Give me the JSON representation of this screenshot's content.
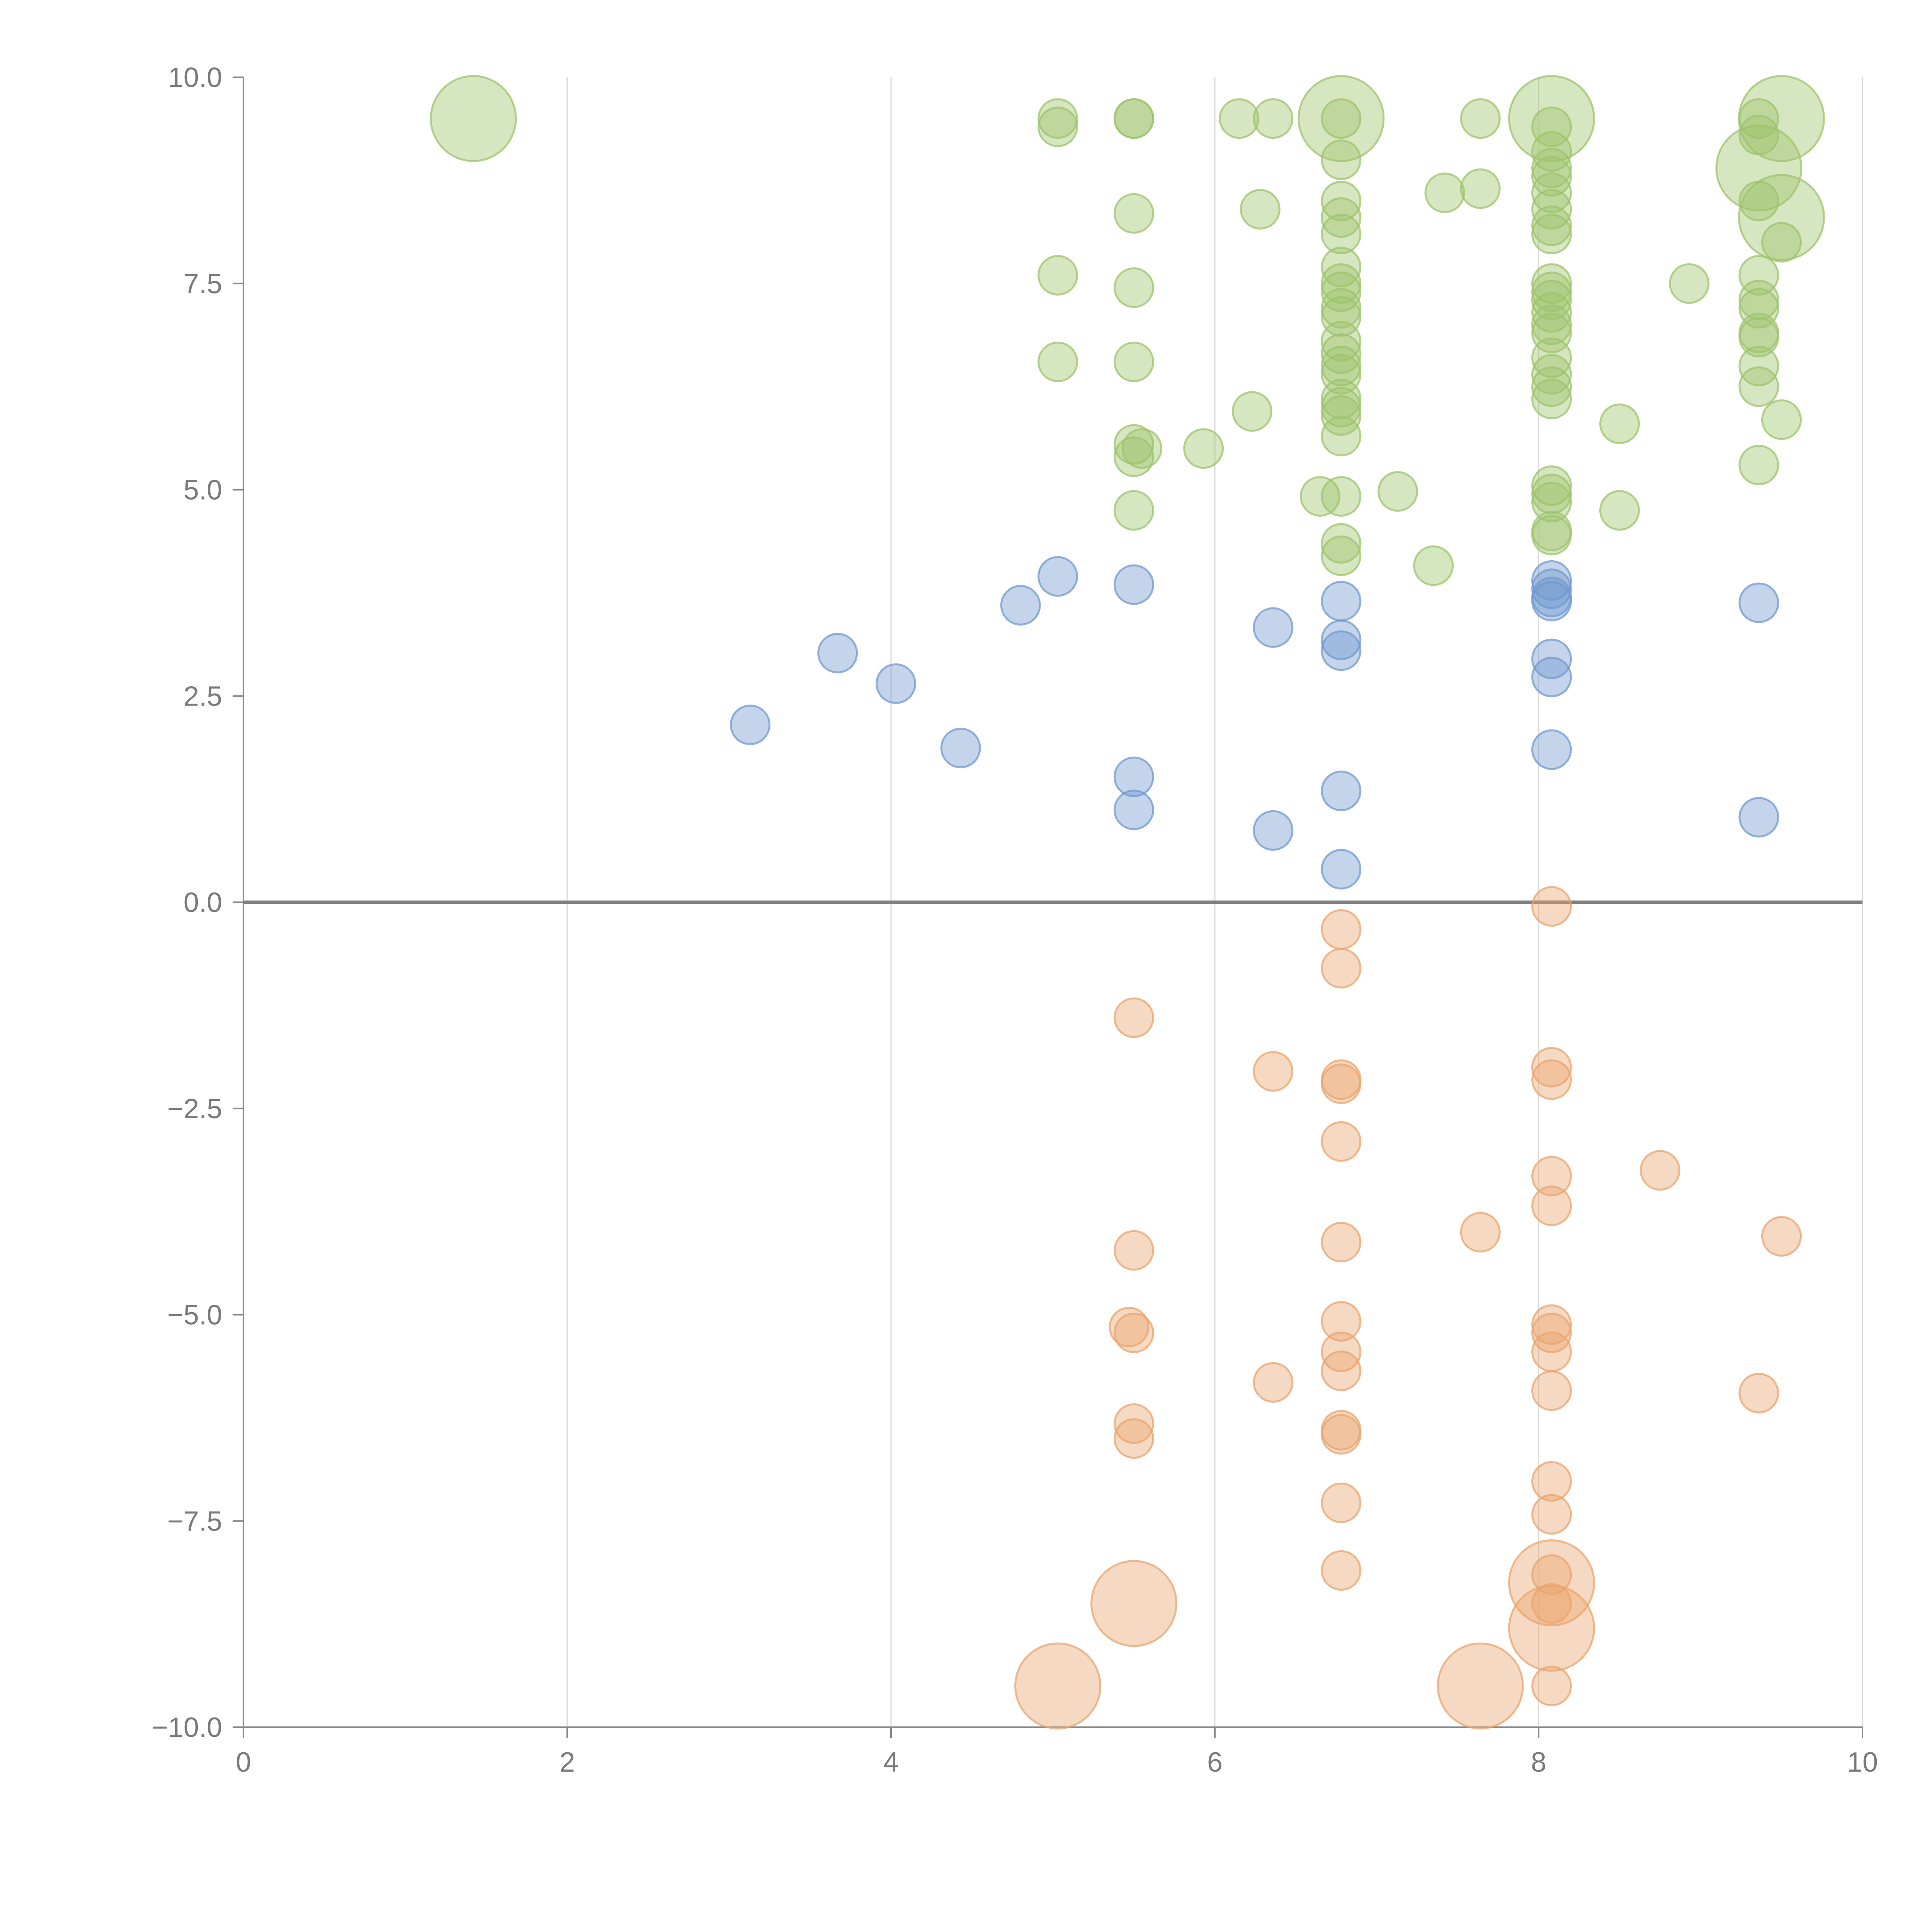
{
  "chart_data": {
    "type": "scatter",
    "title": "",
    "xlabel": "",
    "ylabel": "",
    "xlim": [
      0,
      10
    ],
    "ylim": [
      -10,
      10
    ],
    "x_ticks": [
      "0",
      "2",
      "4",
      "6",
      "8",
      "10"
    ],
    "y_ticks": [
      "−10.0",
      "−7.5",
      "−5.0",
      "−2.5",
      "0.0",
      "2.5",
      "5.0",
      "7.5",
      "10.0"
    ],
    "grid": "vertical",
    "legend": "none",
    "zero_line": true,
    "series": [
      {
        "color": "#9dc36b",
        "points": [
          [
            1.42,
            9.5,
            2.2
          ],
          [
            5.03,
            9.5,
            1
          ],
          [
            5.03,
            9.4,
            1
          ],
          [
            5.5,
            9.5,
            1
          ],
          [
            5.5,
            9.5,
            1
          ],
          [
            6.15,
            9.5,
            1
          ],
          [
            6.36,
            9.5,
            1
          ],
          [
            6.78,
            9.5,
            2.2
          ],
          [
            6.78,
            9.5,
            1
          ],
          [
            7.64,
            9.5,
            1
          ],
          [
            8.08,
            9.5,
            2.2
          ],
          [
            8.08,
            9.4,
            1
          ],
          [
            9.36,
            9.5,
            1
          ],
          [
            9.5,
            9.5,
            2.2
          ],
          [
            9.36,
            9.3,
            1
          ],
          [
            6.78,
            9.0,
            1
          ],
          [
            8.08,
            9.1,
            1
          ],
          [
            8.08,
            8.9,
            1
          ],
          [
            8.08,
            8.8,
            1
          ],
          [
            9.36,
            8.9,
            2.2
          ],
          [
            6.78,
            8.5,
            1
          ],
          [
            6.78,
            8.3,
            1
          ],
          [
            6.78,
            8.1,
            1
          ],
          [
            6.28,
            8.4,
            1
          ],
          [
            7.42,
            8.6,
            1
          ],
          [
            7.64,
            8.65,
            1
          ],
          [
            8.08,
            8.6,
            1
          ],
          [
            8.08,
            8.4,
            1
          ],
          [
            8.08,
            8.2,
            1
          ],
          [
            8.08,
            8.1,
            1
          ],
          [
            9.36,
            8.5,
            1
          ],
          [
            9.5,
            8.3,
            2.2
          ],
          [
            9.5,
            8.0,
            1
          ],
          [
            5.5,
            8.35,
            1
          ],
          [
            5.03,
            7.6,
            1
          ],
          [
            5.5,
            7.45,
            1
          ],
          [
            6.78,
            7.7,
            1
          ],
          [
            6.78,
            7.5,
            1
          ],
          [
            6.78,
            7.4,
            1
          ],
          [
            6.78,
            7.2,
            1
          ],
          [
            6.78,
            7.1,
            1
          ],
          [
            8.08,
            7.5,
            1
          ],
          [
            8.08,
            7.4,
            1
          ],
          [
            8.08,
            7.3,
            1
          ],
          [
            8.08,
            7.15,
            1
          ],
          [
            8.93,
            7.5,
            1
          ],
          [
            9.36,
            7.6,
            1
          ],
          [
            9.36,
            7.3,
            1
          ],
          [
            9.36,
            7.2,
            1
          ],
          [
            5.03,
            6.55,
            1
          ],
          [
            5.5,
            6.55,
            1
          ],
          [
            6.78,
            6.8,
            1
          ],
          [
            6.78,
            6.65,
            1
          ],
          [
            6.78,
            6.5,
            1
          ],
          [
            6.78,
            6.4,
            1
          ],
          [
            6.78,
            6.1,
            1
          ],
          [
            6.78,
            6.0,
            1
          ],
          [
            6.78,
            5.9,
            1
          ],
          [
            6.78,
            5.65,
            1
          ],
          [
            8.08,
            7.0,
            1
          ],
          [
            8.08,
            6.9,
            1
          ],
          [
            8.08,
            6.6,
            1
          ],
          [
            8.08,
            6.4,
            1
          ],
          [
            8.08,
            6.25,
            1
          ],
          [
            8.08,
            6.1,
            1
          ],
          [
            9.36,
            6.9,
            1
          ],
          [
            9.36,
            6.85,
            1
          ],
          [
            9.36,
            6.5,
            1
          ],
          [
            9.36,
            6.25,
            1
          ],
          [
            9.5,
            5.85,
            1
          ],
          [
            6.23,
            5.95,
            1
          ],
          [
            5.5,
            5.55,
            1
          ],
          [
            5.55,
            5.5,
            1
          ],
          [
            5.5,
            5.4,
            1
          ],
          [
            5.93,
            5.5,
            1
          ],
          [
            8.5,
            5.8,
            1
          ],
          [
            9.36,
            5.3,
            1
          ],
          [
            5.5,
            4.75,
            1
          ],
          [
            6.65,
            4.92,
            1
          ],
          [
            6.78,
            4.92,
            1
          ],
          [
            7.13,
            4.98,
            1
          ],
          [
            8.08,
            5.05,
            1
          ],
          [
            8.08,
            4.95,
            1
          ],
          [
            8.08,
            4.85,
            1
          ],
          [
            8.08,
            4.5,
            1
          ],
          [
            8.08,
            4.45,
            1
          ],
          [
            8.5,
            4.75,
            1
          ],
          [
            6.78,
            4.35,
            1
          ],
          [
            6.78,
            4.2,
            1
          ],
          [
            7.35,
            4.08,
            1
          ]
        ]
      },
      {
        "color": "#7099cf",
        "points": [
          [
            3.13,
            2.15,
            1
          ],
          [
            3.67,
            3.02,
            1
          ],
          [
            4.03,
            2.65,
            1
          ],
          [
            4.43,
            1.87,
            1
          ],
          [
            4.8,
            3.6,
            1
          ],
          [
            5.03,
            3.95,
            1
          ],
          [
            5.5,
            3.85,
            1
          ],
          [
            5.5,
            1.52,
            1
          ],
          [
            5.5,
            1.12,
            1
          ],
          [
            6.36,
            3.33,
            1
          ],
          [
            6.36,
            0.87,
            1
          ],
          [
            6.78,
            3.65,
            1
          ],
          [
            6.78,
            3.18,
            1
          ],
          [
            6.78,
            3.05,
            1
          ],
          [
            6.78,
            1.35,
            1
          ],
          [
            6.78,
            0.4,
            1
          ],
          [
            8.08,
            3.9,
            1
          ],
          [
            8.08,
            3.8,
            1
          ],
          [
            8.08,
            3.7,
            1
          ],
          [
            8.08,
            3.65,
            1
          ],
          [
            8.08,
            2.95,
            1
          ],
          [
            8.08,
            2.73,
            1
          ],
          [
            8.08,
            1.85,
            1
          ],
          [
            9.36,
            3.63,
            1
          ],
          [
            9.36,
            1.03,
            1
          ]
        ]
      },
      {
        "color": "#e9a46e",
        "points": [
          [
            8.08,
            -0.05,
            1
          ],
          [
            6.78,
            -0.33,
            1
          ],
          [
            6.78,
            -0.8,
            1
          ],
          [
            5.5,
            -1.4,
            1
          ],
          [
            6.36,
            -2.05,
            1
          ],
          [
            6.78,
            -2.15,
            1
          ],
          [
            6.78,
            -2.2,
            1
          ],
          [
            8.08,
            -2.0,
            1
          ],
          [
            8.08,
            -2.15,
            1
          ],
          [
            6.78,
            -2.9,
            1
          ],
          [
            8.08,
            -3.32,
            1
          ],
          [
            8.08,
            -3.68,
            1
          ],
          [
            8.75,
            -3.25,
            1
          ],
          [
            7.64,
            -4.0,
            1
          ],
          [
            9.5,
            -4.05,
            1
          ],
          [
            6.78,
            -4.12,
            1
          ],
          [
            5.5,
            -4.22,
            1
          ],
          [
            5.47,
            -5.15,
            1
          ],
          [
            5.5,
            -5.22,
            1
          ],
          [
            6.78,
            -5.08,
            1
          ],
          [
            6.78,
            -5.45,
            1
          ],
          [
            6.78,
            -5.68,
            1
          ],
          [
            6.36,
            -5.82,
            1
          ],
          [
            8.08,
            -5.12,
            1
          ],
          [
            8.08,
            -5.22,
            1
          ],
          [
            8.08,
            -5.45,
            1
          ],
          [
            8.08,
            -5.92,
            1
          ],
          [
            9.36,
            -5.95,
            1
          ],
          [
            5.5,
            -6.32,
            1
          ],
          [
            5.5,
            -6.5,
            1
          ],
          [
            6.78,
            -6.4,
            1
          ],
          [
            6.78,
            -6.45,
            1
          ],
          [
            6.78,
            -7.28,
            1
          ],
          [
            8.08,
            -7.02,
            1
          ],
          [
            8.08,
            -7.42,
            1
          ],
          [
            6.78,
            -8.1,
            1
          ],
          [
            8.08,
            -8.15,
            1
          ],
          [
            8.08,
            -8.25,
            2.2
          ],
          [
            8.08,
            -8.5,
            1
          ],
          [
            8.08,
            -8.8,
            2.2
          ],
          [
            5.5,
            -8.5,
            2.2
          ],
          [
            5.03,
            -9.5,
            2.2
          ],
          [
            7.64,
            -9.5,
            2.2
          ],
          [
            8.08,
            -9.5,
            1
          ]
        ]
      }
    ]
  }
}
